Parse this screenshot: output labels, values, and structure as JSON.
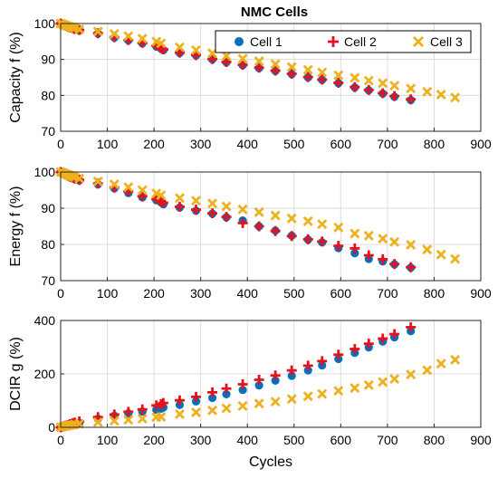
{
  "figure": {
    "title": "NMC Cells"
  },
  "legend": {
    "placement": "top-right of first panel",
    "entries": [
      {
        "label": "Cell 1",
        "marker": "circle",
        "color": "#0072BD"
      },
      {
        "label": "Cell 2",
        "marker": "plus",
        "color": "#E8101A"
      },
      {
        "label": "Cell 3",
        "marker": "x",
        "color": "#EDB120"
      }
    ]
  },
  "chart_data": [
    {
      "type": "scatter",
      "title": "NMC Cells",
      "xlabel": "",
      "ylabel": "Capacity f (%)",
      "xlim": [
        0,
        900
      ],
      "ylim": [
        70,
        100
      ],
      "xticks": [
        0,
        100,
        200,
        300,
        400,
        500,
        600,
        700,
        800,
        900
      ],
      "yticks": [
        70,
        80,
        90,
        100
      ],
      "grid": true,
      "series": [
        {
          "name": "Cell 1",
          "color": "#0072BD",
          "marker": "circle",
          "x": [
            0,
            5,
            10,
            15,
            20,
            25,
            30,
            40,
            80,
            115,
            145,
            175,
            205,
            215,
            220,
            255,
            290,
            325,
            355,
            390,
            425,
            460,
            495,
            530,
            560,
            595,
            630,
            660,
            690,
            715,
            750
          ],
          "y": [
            100,
            99.6,
            99.3,
            99.0,
            98.8,
            98.6,
            98.4,
            98.1,
            97.2,
            96.1,
            95.3,
            94.5,
            93.6,
            93.0,
            92.6,
            91.8,
            91.1,
            90.0,
            89.2,
            88.4,
            87.6,
            86.8,
            85.9,
            85.0,
            84.3,
            83.4,
            82.2,
            81.4,
            80.5,
            79.6,
            78.7
          ]
        },
        {
          "name": "Cell 2",
          "color": "#E8101A",
          "marker": "plus",
          "x": [
            0,
            5,
            10,
            15,
            20,
            25,
            30,
            40,
            80,
            115,
            145,
            175,
            205,
            215,
            220,
            255,
            290,
            325,
            355,
            390,
            425,
            460,
            495,
            530,
            560,
            595,
            630,
            660,
            690,
            715,
            750
          ],
          "y": [
            100,
            99.7,
            99.4,
            99.1,
            98.9,
            98.7,
            98.5,
            98.2,
            97.3,
            96.2,
            95.4,
            94.6,
            93.8,
            93.2,
            92.8,
            91.9,
            91.2,
            90.1,
            89.3,
            88.5,
            87.7,
            86.9,
            86.0,
            85.1,
            84.4,
            83.5,
            82.3,
            81.5,
            80.6,
            79.8,
            78.9
          ]
        },
        {
          "name": "Cell 3",
          "color": "#EDB120",
          "marker": "x",
          "x": [
            0,
            5,
            10,
            15,
            20,
            25,
            30,
            40,
            80,
            115,
            145,
            175,
            205,
            215,
            255,
            290,
            325,
            355,
            390,
            425,
            460,
            495,
            530,
            560,
            595,
            630,
            660,
            690,
            715,
            750,
            785,
            815,
            845
          ],
          "y": [
            100,
            99.8,
            99.5,
            99.3,
            99.1,
            98.9,
            98.7,
            98.4,
            97.8,
            97.1,
            96.5,
            95.8,
            95.0,
            94.5,
            93.4,
            92.6,
            91.7,
            91.0,
            90.2,
            89.5,
            88.7,
            87.9,
            87.1,
            86.4,
            85.6,
            84.9,
            84.1,
            83.4,
            82.7,
            81.9,
            81.0,
            80.2,
            79.4
          ]
        }
      ]
    },
    {
      "type": "scatter",
      "title": "",
      "xlabel": "",
      "ylabel": "Energy f (%)",
      "xlim": [
        0,
        900
      ],
      "ylim": [
        70,
        100
      ],
      "xticks": [
        0,
        100,
        200,
        300,
        400,
        500,
        600,
        700,
        800,
        900
      ],
      "yticks": [
        70,
        80,
        90,
        100
      ],
      "grid": true,
      "series": [
        {
          "name": "Cell 1",
          "color": "#0072BD",
          "marker": "circle",
          "x": [
            0,
            5,
            10,
            15,
            20,
            25,
            30,
            40,
            80,
            115,
            145,
            175,
            205,
            215,
            220,
            255,
            290,
            325,
            355,
            390,
            425,
            460,
            495,
            530,
            560,
            595,
            630,
            660,
            690,
            715,
            750
          ],
          "y": [
            100,
            99.6,
            99.2,
            98.9,
            98.6,
            98.4,
            98.1,
            97.7,
            96.6,
            95.5,
            94.2,
            93.0,
            92.2,
            91.6,
            91.1,
            90.2,
            89.3,
            88.5,
            87.5,
            86.6,
            85.0,
            83.8,
            82.4,
            81.3,
            80.6,
            79.0,
            77.6,
            76.0,
            75.3,
            74.5,
            73.6
          ]
        },
        {
          "name": "Cell 2",
          "color": "#E8101A",
          "marker": "plus",
          "x": [
            0,
            5,
            10,
            15,
            20,
            25,
            30,
            40,
            80,
            115,
            145,
            175,
            205,
            215,
            220,
            255,
            290,
            325,
            355,
            390,
            425,
            460,
            495,
            530,
            560,
            595,
            630,
            660,
            690,
            715,
            750
          ],
          "y": [
            100,
            99.7,
            99.3,
            99.0,
            98.7,
            98.5,
            98.2,
            97.8,
            96.8,
            95.7,
            94.6,
            93.3,
            92.5,
            92.0,
            91.5,
            90.4,
            89.6,
            88.6,
            87.6,
            85.9,
            85.0,
            83.7,
            82.3,
            81.4,
            80.8,
            79.6,
            78.9,
            77.0,
            75.9,
            74.6,
            73.7
          ]
        },
        {
          "name": "Cell 3",
          "color": "#EDB120",
          "marker": "x",
          "x": [
            0,
            5,
            10,
            15,
            20,
            25,
            30,
            40,
            80,
            115,
            145,
            175,
            205,
            215,
            255,
            290,
            325,
            355,
            390,
            425,
            460,
            495,
            530,
            560,
            595,
            630,
            660,
            690,
            715,
            750,
            785,
            815,
            845
          ],
          "y": [
            100,
            99.8,
            99.5,
            99.3,
            99.0,
            98.8,
            98.6,
            98.2,
            97.4,
            96.6,
            95.8,
            95.0,
            94.1,
            93.6,
            92.8,
            92.1,
            91.3,
            90.5,
            89.7,
            88.9,
            88.0,
            87.2,
            86.4,
            85.6,
            84.7,
            83.0,
            82.4,
            81.6,
            80.7,
            79.9,
            78.6,
            77.2,
            76.0
          ]
        }
      ]
    },
    {
      "type": "scatter",
      "title": "",
      "xlabel": "Cycles",
      "ylabel": "DCIR g (%)",
      "xlim": [
        0,
        900
      ],
      "ylim": [
        0,
        400
      ],
      "xticks": [
        0,
        100,
        200,
        300,
        400,
        500,
        600,
        700,
        800,
        900
      ],
      "yticks": [
        0,
        200,
        400
      ],
      "grid": true,
      "series": [
        {
          "name": "Cell 1",
          "color": "#0072BD",
          "marker": "circle",
          "x": [
            0,
            5,
            10,
            15,
            20,
            25,
            30,
            40,
            80,
            115,
            145,
            175,
            205,
            215,
            220,
            255,
            290,
            325,
            355,
            390,
            425,
            460,
            495,
            530,
            560,
            595,
            630,
            660,
            690,
            715,
            750
          ],
          "y": [
            0,
            2,
            4,
            6,
            9,
            11,
            13,
            16,
            32,
            43,
            52,
            59,
            66,
            70,
            74,
            84,
            97,
            110,
            124,
            140,
            157,
            175,
            193,
            213,
            232,
            256,
            279,
            299,
            321,
            337,
            360
          ]
        },
        {
          "name": "Cell 2",
          "color": "#E8101A",
          "marker": "plus",
          "x": [
            0,
            5,
            10,
            15,
            20,
            25,
            30,
            40,
            80,
            115,
            145,
            175,
            205,
            215,
            220,
            255,
            290,
            325,
            355,
            390,
            425,
            460,
            495,
            530,
            560,
            595,
            630,
            660,
            690,
            715,
            750
          ],
          "y": [
            0,
            3,
            6,
            9,
            12,
            15,
            18,
            22,
            38,
            48,
            58,
            67,
            82,
            87,
            91,
            101,
            114,
            131,
            145,
            161,
            178,
            194,
            213,
            231,
            248,
            272,
            293,
            313,
            332,
            349,
            375
          ]
        },
        {
          "name": "Cell 3",
          "color": "#EDB120",
          "marker": "x",
          "x": [
            0,
            5,
            10,
            15,
            20,
            25,
            30,
            40,
            80,
            115,
            145,
            175,
            205,
            215,
            255,
            290,
            325,
            355,
            390,
            425,
            460,
            495,
            530,
            560,
            595,
            630,
            660,
            690,
            715,
            750,
            785,
            815,
            845
          ],
          "y": [
            0,
            2,
            4,
            6,
            8,
            9,
            11,
            13,
            19,
            24,
            28,
            32,
            38,
            39,
            49,
            56,
            63,
            71,
            80,
            89,
            96,
            106,
            116,
            125,
            137,
            147,
            158,
            170,
            181,
            198,
            214,
            238,
            253
          ]
        }
      ]
    }
  ]
}
